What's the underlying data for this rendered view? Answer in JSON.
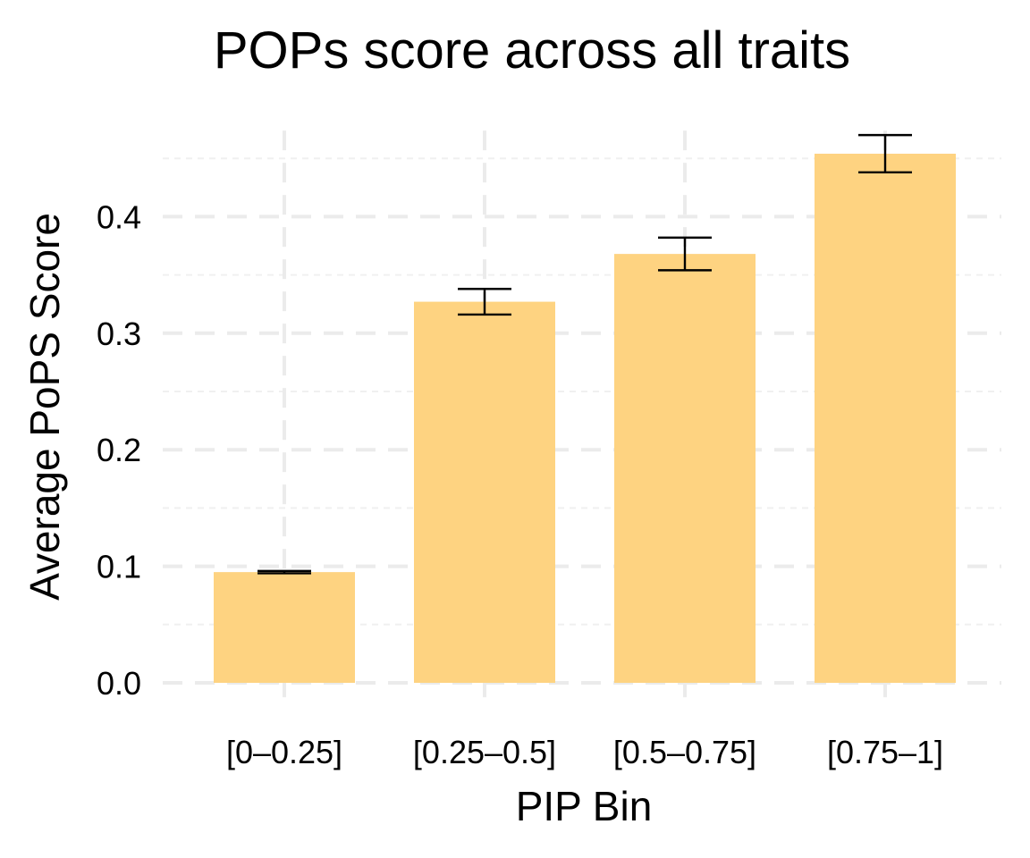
{
  "chart_data": {
    "type": "bar",
    "title": "POPs score across all traits",
    "xlabel": "PIP Bin",
    "ylabel": "Average PoPS Score",
    "categories": [
      "[0–0.25]",
      "[0.25–0.5]",
      "[0.5–0.75]",
      "[0.75–1]"
    ],
    "values": [
      0.095,
      0.327,
      0.368,
      0.454
    ],
    "error_low": [
      0.094,
      0.316,
      0.354,
      0.438
    ],
    "error_high": [
      0.096,
      0.338,
      0.382,
      0.47
    ],
    "ylim": [
      0,
      0.47
    ],
    "yticks": [
      0.0,
      0.1,
      0.2,
      0.3,
      0.4
    ],
    "ytick_labels": [
      "0.0",
      "0.1",
      "0.2",
      "0.3",
      "0.4"
    ],
    "grid": true,
    "bar_color": "#fed381",
    "error_bar_color": "#000000"
  }
}
